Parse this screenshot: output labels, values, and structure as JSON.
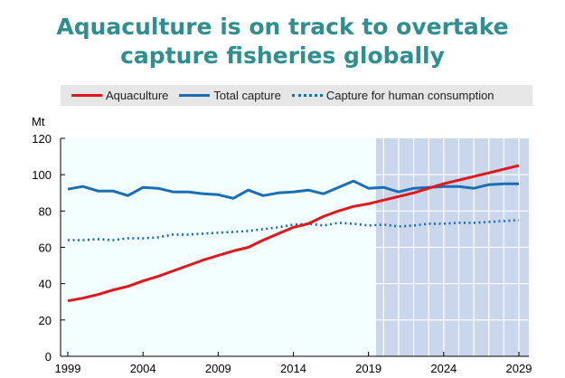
{
  "chart_data": {
    "type": "line",
    "title": "Aquaculture is on track to overtake capture fisheries globally",
    "title_lines": [
      "Aquaculture is on track to overtake",
      "capture fisheries globally"
    ],
    "ylabel": "Mt",
    "xlabel": "",
    "ylim": [
      0,
      120
    ],
    "xlim": [
      1999,
      2029
    ],
    "yticks": [
      0,
      20,
      40,
      60,
      80,
      100,
      120
    ],
    "xticks": [
      1999,
      2004,
      2009,
      2014,
      2019,
      2024,
      2029
    ],
    "projection_start": 2020,
    "legend_position": "top",
    "x": [
      1999,
      2000,
      2001,
      2002,
      2003,
      2004,
      2005,
      2006,
      2007,
      2008,
      2009,
      2010,
      2011,
      2012,
      2013,
      2014,
      2015,
      2016,
      2017,
      2018,
      2019,
      2020,
      2021,
      2022,
      2023,
      2024,
      2025,
      2026,
      2027,
      2028,
      2029
    ],
    "series": [
      {
        "name": "Aquaculture",
        "color": "#e3171b",
        "style": "solid",
        "values": [
          30.5,
          32,
          34,
          36.5,
          38.5,
          41.5,
          44,
          47,
          50,
          53,
          55.5,
          58,
          60,
          64,
          67.5,
          71,
          73,
          77,
          80,
          82.5,
          84,
          86,
          88,
          90,
          92.5,
          95,
          97,
          99,
          101,
          103,
          105
        ]
      },
      {
        "name": "Total capture",
        "color": "#1a6fb4",
        "style": "solid",
        "values": [
          92,
          93.5,
          91,
          91,
          88.5,
          93,
          92.5,
          90.5,
          90.5,
          89.5,
          89,
          87,
          91.5,
          88.5,
          90,
          90.5,
          91.5,
          89.5,
          93,
          96.5,
          92.5,
          93,
          90.5,
          92.5,
          93,
          93.5,
          93.5,
          92.5,
          94.5,
          95,
          95
        ]
      },
      {
        "name": "Capture for human consumption",
        "color": "#1a6fb4",
        "style": "dotted",
        "values": [
          64,
          64,
          64.5,
          64,
          65,
          65,
          65.5,
          67,
          67,
          67.5,
          68,
          68.5,
          69,
          70,
          71,
          72.5,
          73,
          72,
          73.5,
          73,
          72,
          72.5,
          71.5,
          72,
          73,
          73,
          73.5,
          73.5,
          74,
          74.5,
          75
        ]
      }
    ]
  }
}
